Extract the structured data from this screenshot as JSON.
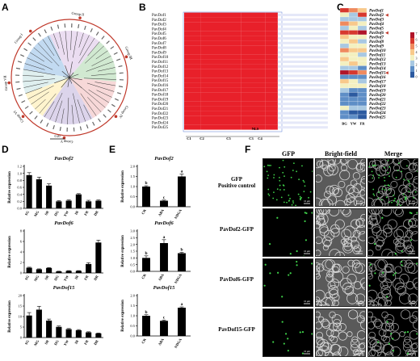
{
  "panels": {
    "A": "A",
    "B": "B",
    "C": "C",
    "D": "D",
    "E": "E",
    "F": "F"
  },
  "panelA": {
    "groups": [
      "Group I",
      "Group II",
      "Group III",
      "Group IV",
      "Group V",
      "Group VI",
      "Group VII"
    ],
    "sector_colors": [
      "#b7d3ee",
      "#e8d7ef",
      "#c9e5c9",
      "#f6d1d1",
      "#d6cde8",
      "#fff2c6",
      "#d9ecec"
    ],
    "scale_label": "0.20"
  },
  "panelB": {
    "genes": [
      "PavDof1",
      "PavDof2",
      "PavDof3",
      "PavDof4",
      "PavDof5",
      "PavDof6",
      "PavDof7",
      "PavDof8",
      "PavDof9",
      "PavDof10",
      "PavDof11",
      "PavDof12",
      "PavDof13",
      "PavDof14",
      "PavDof15",
      "PavDof16",
      "PavDof17",
      "PavDof18",
      "PavDof19",
      "PavDof20",
      "PavDof21",
      "PavDof22",
      "PavDof23",
      "PavDof24",
      "PavDof25"
    ],
    "motifs": [
      "C1",
      "C2",
      "C3",
      "C4",
      "C5",
      "NLS"
    ]
  },
  "panelC": {
    "genes": [
      "PavDof1",
      "PavDof2",
      "PavDof3",
      "PavDof4",
      "PavDof5",
      "PavDof6",
      "PavDof7",
      "PavDof8",
      "PavDof9",
      "PavDof10",
      "PavDof11",
      "PavDof12",
      "PavDof13",
      "PavDof14",
      "PavDof15",
      "PavDof16",
      "PavDof17",
      "PavDof18",
      "PavDof19",
      "PavDof20",
      "PavDof21",
      "PavDof22",
      "PavDof23",
      "PavDof24",
      "PavDof25"
    ],
    "columns": [
      "BG",
      "YW",
      "FR"
    ],
    "legend_title": "log2(FPKM+1)",
    "legend_ticks": [
      "7",
      "6",
      "5",
      "4",
      "3",
      "2",
      "1",
      "0"
    ],
    "marked": [
      "PavDof2",
      "PavDof6",
      "PavDof15"
    ]
  },
  "chart_data": [
    {
      "type": "bar",
      "title": "PavDof2",
      "ylabel": "Relative expression",
      "categories": [
        "SG",
        "MG",
        "SR",
        "DG",
        "YW",
        "IR",
        "FR",
        "DR"
      ],
      "values": [
        0.95,
        0.83,
        0.65,
        0.2,
        0.22,
        0.4,
        0.2,
        0.22
      ],
      "errors": [
        0.07,
        0.06,
        0.05,
        0.02,
        0.02,
        0.02,
        0.03,
        0.02
      ],
      "ylim": [
        0,
        1.2
      ],
      "yticks": [
        "0.0",
        "0.2",
        "0.4",
        "0.6",
        "0.8",
        "1.0",
        "1.2"
      ]
    },
    {
      "type": "bar",
      "title": "PavDof6",
      "ylabel": "Relative expression",
      "categories": [
        "SG",
        "MG",
        "SR",
        "DG",
        "YW",
        "IR",
        "FR",
        "DR"
      ],
      "values": [
        1.0,
        0.7,
        0.95,
        0.3,
        0.4,
        0.4,
        1.7,
        5.8
      ],
      "errors": [
        0.1,
        0.08,
        0.08,
        0.04,
        0.05,
        0.05,
        0.25,
        0.45
      ],
      "ylim": [
        0,
        8
      ],
      "yticks": [
        "0",
        "2",
        "4",
        "6",
        "8"
      ]
    },
    {
      "type": "bar",
      "title": "PavDof15",
      "ylabel": "Relative expression",
      "categories": [
        "SG",
        "MG",
        "SR",
        "DG",
        "YW",
        "IR",
        "FR",
        "DR"
      ],
      "values": [
        10.5,
        13.3,
        8.1,
        5.1,
        4.0,
        3.5,
        2.5,
        2.0
      ],
      "errors": [
        1.4,
        1.6,
        0.7,
        0.4,
        0.3,
        0.3,
        0.25,
        0.2
      ],
      "ylim": [
        0,
        20
      ],
      "yticks": [
        "0",
        "5",
        "10",
        "15",
        "20"
      ]
    },
    {
      "type": "bar",
      "title": "PavDof2",
      "ylabel": "Relative expression",
      "categories": [
        "CK",
        "ABA",
        "NDGA"
      ],
      "values": [
        1.0,
        0.3,
        1.5
      ],
      "errors": [
        0.04,
        0.03,
        0.12
      ],
      "letters": [
        "b",
        "c",
        "a"
      ],
      "ylim": [
        0,
        2.0
      ],
      "yticks": [
        "0.0",
        "0.5",
        "1.0",
        "1.5",
        "2.0"
      ]
    },
    {
      "type": "bar",
      "title": "PavDof6",
      "ylabel": "Relative expression",
      "categories": [
        "CK",
        "ABA",
        "NDGA"
      ],
      "values": [
        1.0,
        2.1,
        1.35
      ],
      "errors": [
        0.15,
        0.25,
        0.06
      ],
      "letters": [
        "b",
        "a",
        "b"
      ],
      "ylim": [
        0,
        3.0
      ],
      "yticks": [
        "0.0",
        "0.5",
        "1.0",
        "1.5",
        "2.0",
        "2.5",
        "3.0"
      ]
    },
    {
      "type": "bar",
      "title": "PavDof15",
      "ylabel": "Relative expression",
      "categories": [
        "CK",
        "ABA",
        "NDGA"
      ],
      "values": [
        1.0,
        0.75,
        1.4
      ],
      "errors": [
        0.05,
        0.04,
        0.04
      ],
      "letters": [
        "b",
        "c",
        "a"
      ],
      "ylim": [
        0,
        2.0
      ],
      "yticks": [
        "0.0",
        "0.5",
        "1.0",
        "1.5",
        "2.0"
      ]
    }
  ],
  "panelF": {
    "columns": [
      "GFP",
      "Bright-field",
      "Merge"
    ],
    "rows": [
      "GFP\nPositive control",
      "PavDof2-GFP",
      "PavDof6-GFP",
      "PavDof15-GFP"
    ],
    "scale_label": "10 μm"
  }
}
